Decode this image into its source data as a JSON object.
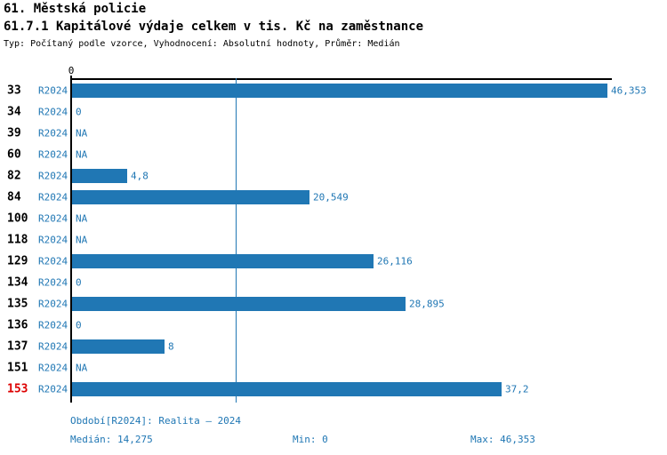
{
  "header": {
    "title": "61. Městská policie",
    "subtitle": "61.7.1 Kapitálové výdaje celkem v tis. Kč na zaměstnance",
    "meta": "Typ: Počítaný podle vzorce, Vyhodnocení: Absolutní hodnoty, Průměr: Medián"
  },
  "chart_data": {
    "type": "bar",
    "orientation": "horizontal",
    "unit": "tis. Kč",
    "period_label": "R2024",
    "x_tick_labels": [
      "0"
    ],
    "xlim": [
      0,
      46.353
    ],
    "median": 14.275,
    "highlighted_category": "153",
    "grid": false,
    "legend": false,
    "categories": [
      "33",
      "34",
      "39",
      "60",
      "82",
      "84",
      "100",
      "118",
      "129",
      "134",
      "135",
      "136",
      "137",
      "151",
      "153"
    ],
    "rows": [
      {
        "id": "33",
        "value": 46.353,
        "label": "46,353"
      },
      {
        "id": "34",
        "value": 0,
        "label": "0"
      },
      {
        "id": "39",
        "value": null,
        "label": "NA"
      },
      {
        "id": "60",
        "value": null,
        "label": "NA"
      },
      {
        "id": "82",
        "value": 4.8,
        "label": "4,8"
      },
      {
        "id": "84",
        "value": 20.549,
        "label": "20,549"
      },
      {
        "id": "100",
        "value": null,
        "label": "NA"
      },
      {
        "id": "118",
        "value": null,
        "label": "NA"
      },
      {
        "id": "129",
        "value": 26.116,
        "label": "26,116"
      },
      {
        "id": "134",
        "value": 0,
        "label": "0"
      },
      {
        "id": "135",
        "value": 28.895,
        "label": "28,895"
      },
      {
        "id": "136",
        "value": 0,
        "label": "0"
      },
      {
        "id": "137",
        "value": 8,
        "label": "8"
      },
      {
        "id": "151",
        "value": null,
        "label": "NA"
      },
      {
        "id": "153",
        "value": 37.2,
        "label": "37,2"
      }
    ],
    "colors": {
      "bar": "#2077b4",
      "text_blue": "#2077b4",
      "highlight_red": "#dd0000",
      "axis": "#000000"
    }
  },
  "footer": {
    "period": "Období[R2024]: Realita – 2024",
    "median": "Medián: 14,275",
    "min": "Min: 0",
    "max": "Max: 46,353"
  }
}
